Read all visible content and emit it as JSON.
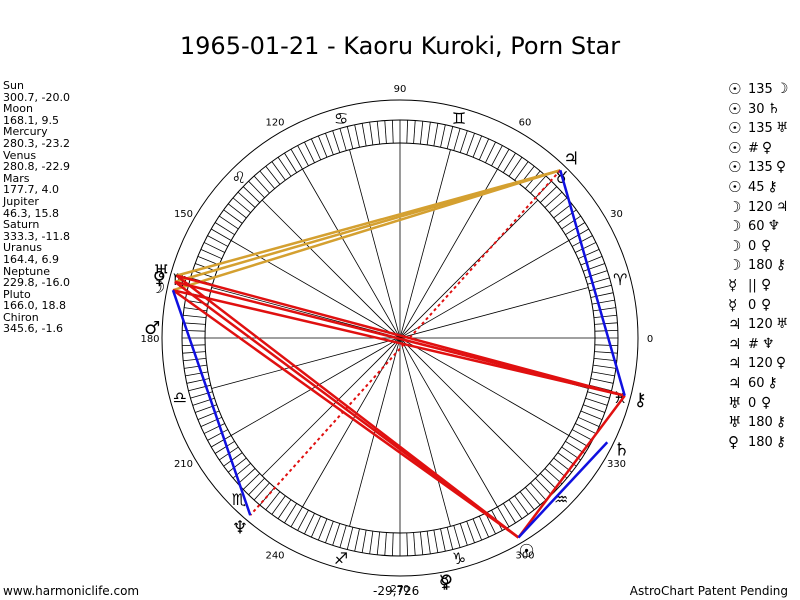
{
  "title": "1965-01-21 - Kaoru Kuroki, Porn Star",
  "planets": [
    {
      "name": "Sun",
      "pos": "300.7, -20.0"
    },
    {
      "name": "Moon",
      "pos": "168.1, 9.5"
    },
    {
      "name": "Mercury",
      "pos": "280.3, -23.2"
    },
    {
      "name": "Venus",
      "pos": "280.8, -22.9"
    },
    {
      "name": "Mars",
      "pos": "177.7, 4.0"
    },
    {
      "name": "Jupiter",
      "pos": "46.3, 15.8"
    },
    {
      "name": "Saturn",
      "pos": "333.3, -11.8"
    },
    {
      "name": "Uranus",
      "pos": "164.4, 6.9"
    },
    {
      "name": "Neptune",
      "pos": "229.8, -16.0"
    },
    {
      "name": "Pluto",
      "pos": "166.0, 18.8"
    },
    {
      "name": "Chiron",
      "pos": "345.6, -1.6"
    }
  ],
  "aspects": [
    {
      "p1": "☉",
      "angle": "135",
      "p2": "☽"
    },
    {
      "p1": "☉",
      "angle": "30",
      "p2": "♄"
    },
    {
      "p1": "☉",
      "angle": "135",
      "p2": "♅"
    },
    {
      "p1": "☉",
      "angle": "#",
      "p2": "♀"
    },
    {
      "p1": "☉",
      "angle": "135",
      "p2": "♀"
    },
    {
      "p1": "☉",
      "angle": "45",
      "p2": "⚷"
    },
    {
      "p1": "☽",
      "angle": "120",
      "p2": "♃"
    },
    {
      "p1": "☽",
      "angle": "60",
      "p2": "♆"
    },
    {
      "p1": "☽",
      "angle": "0",
      "p2": "♀"
    },
    {
      "p1": "☽",
      "angle": "180",
      "p2": "⚷"
    },
    {
      "p1": "☿",
      "angle": "||",
      "p2": "♀"
    },
    {
      "p1": "☿",
      "angle": "0",
      "p2": "♀"
    },
    {
      "p1": "♃",
      "angle": "120",
      "p2": "♅"
    },
    {
      "p1": "♃",
      "angle": "#",
      "p2": "♆"
    },
    {
      "p1": "♃",
      "angle": "120",
      "p2": "♀"
    },
    {
      "p1": "♃",
      "angle": "60",
      "p2": "⚷"
    },
    {
      "p1": "♅",
      "angle": "0",
      "p2": "♀"
    },
    {
      "p1": "♅",
      "angle": "180",
      "p2": "⚷"
    },
    {
      "p1": "♀",
      "angle": "180",
      "p2": "⚷"
    }
  ],
  "wheel": {
    "degree_labels": [
      "0",
      "30",
      "60",
      "90",
      "120",
      "150",
      "180",
      "210",
      "240",
      "270",
      "300",
      "330"
    ],
    "sign_glyphs": [
      "♈",
      "♉",
      "♊",
      "♋",
      "♌",
      "♍",
      "♎",
      "♏",
      "♐",
      "♑",
      "♒",
      "♓"
    ],
    "node_glyph": "☊",
    "chart_planets": [
      {
        "glyph": "☉",
        "lon": 300.7
      },
      {
        "glyph": "☽",
        "lon": 168.1
      },
      {
        "glyph": "☿",
        "lon": 280.3
      },
      {
        "glyph": "♀",
        "lon": 280.8
      },
      {
        "glyph": "♂",
        "lon": 177.7
      },
      {
        "glyph": "♃",
        "lon": 46.3
      },
      {
        "glyph": "♄",
        "lon": 333.3
      },
      {
        "glyph": "♅",
        "lon": 164.4
      },
      {
        "glyph": "♆",
        "lon": 229.8
      },
      {
        "glyph": "♀",
        "lon": 166.0
      },
      {
        "glyph": "⚷",
        "lon": 345.6
      }
    ]
  },
  "aspect_lines": [
    {
      "from": 168.1,
      "to": 46.3,
      "color": "#d4a030",
      "style": "solid"
    },
    {
      "from": 164.4,
      "to": 46.3,
      "color": "#d4a030",
      "style": "solid"
    },
    {
      "from": 166.0,
      "to": 46.3,
      "color": "#d4a030",
      "style": "solid"
    },
    {
      "from": 168.1,
      "to": 345.6,
      "color": "#e01010",
      "style": "solid"
    },
    {
      "from": 164.4,
      "to": 345.6,
      "color": "#e01010",
      "style": "solid"
    },
    {
      "from": 166.0,
      "to": 345.6,
      "color": "#e01010",
      "style": "solid"
    },
    {
      "from": 168.1,
      "to": 300.7,
      "color": "#e01010",
      "style": "solid"
    },
    {
      "from": 164.4,
      "to": 300.7,
      "color": "#e01010",
      "style": "solid"
    },
    {
      "from": 166.0,
      "to": 300.7,
      "color": "#e01010",
      "style": "solid"
    },
    {
      "from": 300.7,
      "to": 345.6,
      "color": "#e01010",
      "style": "solid"
    },
    {
      "from": 46.3,
      "to": 229.8,
      "color": "#e01010",
      "style": "dotted"
    },
    {
      "from": 46.3,
      "to": 345.6,
      "color": "#1010e0",
      "style": "solid"
    },
    {
      "from": 168.1,
      "to": 229.8,
      "color": "#1010e0",
      "style": "solid"
    },
    {
      "from": 300.7,
      "to": 333.3,
      "color": "#1010e0",
      "style": "solid"
    }
  ],
  "footer": {
    "left": "www.harmoniclife.com",
    "center": "-29,726",
    "right": "AstroChart Patent Pending"
  },
  "colors": {
    "soft": "#d4a030",
    "hard": "#e01010",
    "harmonious": "#1010e0"
  }
}
